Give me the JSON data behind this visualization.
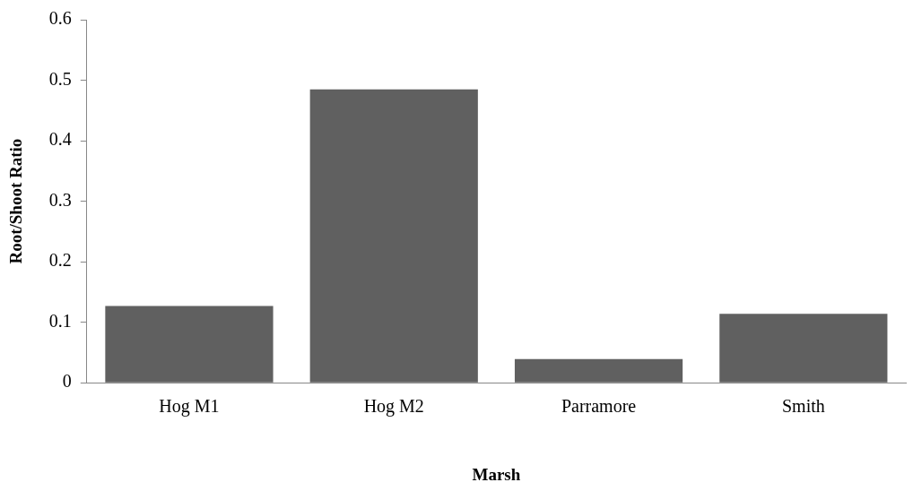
{
  "chart_data": {
    "type": "bar",
    "xlabel": "Marsh",
    "ylabel": "Root/Shoot Ratio",
    "categories": [
      "Hog M1",
      "Hog M2",
      "Parramore",
      "Smith"
    ],
    "values": [
      0.127,
      0.485,
      0.039,
      0.114
    ],
    "color": "#606060",
    "ylim": [
      0,
      0.6
    ],
    "yticks": [
      0,
      0.1,
      0.2,
      0.3,
      0.4,
      0.5,
      0.6
    ],
    "grid": false,
    "legend": false
  }
}
